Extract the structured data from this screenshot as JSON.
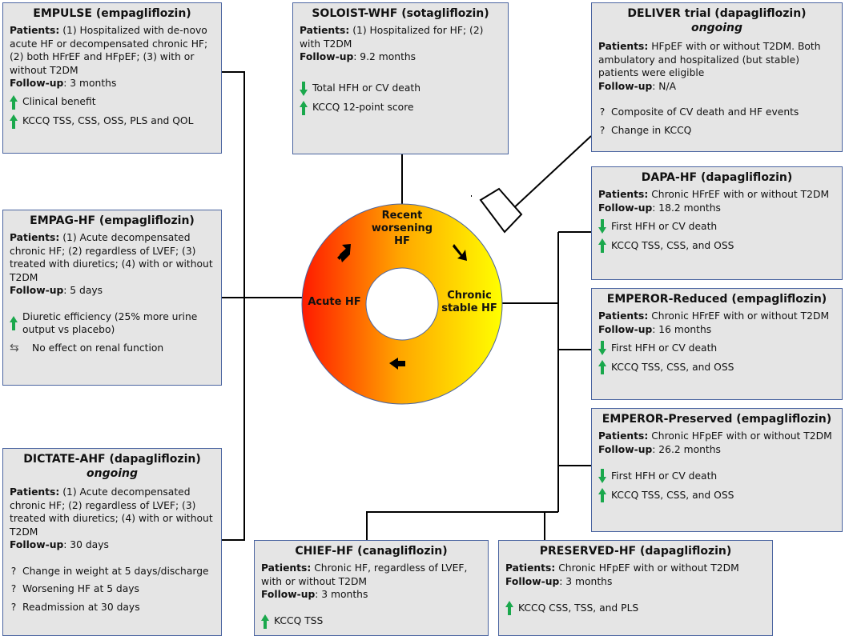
{
  "cycle": {
    "recent": "Recent worsening HF",
    "acute": "Acute HF",
    "chronic": "Chronic stable HF"
  },
  "trials": {
    "empulse": {
      "title": "EMPULSE (empagliflozin)",
      "patients_label": "Patients:",
      "patients": "(1) Hospitalized with de-novo acute HF or decompensated chronic HF; (2) both HFrEF and HFpEF; (3) with or without T2DM",
      "followup_label": "Follow-up",
      "followup": ": 3 months",
      "results": [
        {
          "icon": "up-arrow",
          "text": "Clinical benefit"
        },
        {
          "icon": "up-arrow",
          "text": "KCCQ TSS, CSS, OSS, PLS and QOL"
        }
      ]
    },
    "empag": {
      "title": "EMPAG-HF (empagliflozin)",
      "patients_label": "Patients:",
      "patients": "(1) Acute decompensated chronic HF; (2) regardless of LVEF; (3) treated with diuretics; (4) with or without T2DM",
      "followup_label": "Follow-up",
      "followup": ": 5 days",
      "results": [
        {
          "icon": "up-arrow",
          "text": "Diuretic efficiency (25% more urine output vs placebo)"
        },
        {
          "icon": "left-right-arrow",
          "text": "No effect on renal function"
        }
      ]
    },
    "dictate": {
      "title": "DICTATE-AHF (dapagliflozin)",
      "status": "ongoing",
      "patients_label": "Patients:",
      "patients": "(1) Acute decompensated chronic HF; (2) regardless of LVEF; (3) treated with diuretics; (4) with or without T2DM",
      "followup_label": "Follow-up",
      "followup": ": 30 days",
      "results": [
        {
          "icon": "question",
          "text": "Change in weight at 5 days/discharge"
        },
        {
          "icon": "question",
          "text": "Worsening HF at 5 days"
        },
        {
          "icon": "question",
          "text": "Readmission at 30 days"
        }
      ]
    },
    "soloist": {
      "title": "SOLOIST-WHF (sotagliflozin)",
      "patients_label": "Patients:",
      "patients": "(1) Hospitalized for HF; (2) with T2DM",
      "followup_label": "Follow-up",
      "followup": ": 9.2 months",
      "results": [
        {
          "icon": "down-arrow",
          "text": "Total HFH or CV death"
        },
        {
          "icon": "up-arrow",
          "text": "KCCQ 12-point score"
        }
      ]
    },
    "deliver": {
      "title": "DELIVER trial (dapagliflozin)",
      "status": "ongoing",
      "patients_label": "Patients:",
      "patients": "HFpEF with or without T2DM. Both ambulatory and hospitalized (but stable) patients were eligible",
      "followup_label": "Follow-up",
      "followup": ": N/A",
      "results": [
        {
          "icon": "question",
          "text": "Composite of CV death and HF events"
        },
        {
          "icon": "question",
          "text": "Change in KCCQ"
        }
      ]
    },
    "dapa": {
      "title": "DAPA-HF (dapagliflozin)",
      "patients_label": "Patients:",
      "patients": "Chronic HFrEF with or without T2DM",
      "followup_label": "Follow-up",
      "followup": ": 18.2 months",
      "results": [
        {
          "icon": "down-arrow",
          "text": "First HFH or CV death"
        },
        {
          "icon": "up-arrow",
          "text": "KCCQ TSS, CSS, and OSS"
        }
      ]
    },
    "emperor_r": {
      "title": "EMPEROR-Reduced (empagliflozin)",
      "patients_label": "Patients:",
      "patients": "Chronic HFrEF with or without T2DM",
      "followup_label": "Follow-up",
      "followup": ": 16 months",
      "results": [
        {
          "icon": "down-arrow",
          "text": "First HFH or CV death"
        },
        {
          "icon": "up-arrow",
          "text": "KCCQ TSS, CSS, and OSS"
        }
      ]
    },
    "emperor_p": {
      "title": "EMPEROR-Preserved (empagliflozin)",
      "patients_label": "Patients:",
      "patients": "Chronic HFpEF with or without T2DM",
      "followup_label": "Follow-up",
      "followup": ": 26.2 months",
      "results": [
        {
          "icon": "down-arrow",
          "text": "First HFH or CV death"
        },
        {
          "icon": "up-arrow",
          "text": "KCCQ TSS, CSS, and OSS"
        }
      ]
    },
    "chief": {
      "title": "CHIEF-HF (canagliflozin)",
      "patients_label": "Patients:",
      "patients": "Chronic HF, regardless of LVEF, with or without T2DM",
      "followup_label": "Follow-up",
      "followup": ": 3 months",
      "results": [
        {
          "icon": "up-arrow",
          "text": "KCCQ TSS"
        }
      ]
    },
    "preserved": {
      "title": "PRESERVED-HF (dapagliflozin)",
      "patients_label": "Patients:",
      "patients": "Chronic HFpEF with or without T2DM",
      "followup_label": "Follow-up",
      "followup": ": 3 months",
      "results": [
        {
          "icon": "up-arrow",
          "text": "KCCQ CSS, TSS, and PLS"
        }
      ]
    }
  },
  "colors": {
    "arrow_green": "#1aa84c",
    "border": "#4a64a0",
    "box_bg": "#e5e5e5",
    "ring_start": "#ff1a00",
    "ring_end": "#ffff00"
  }
}
